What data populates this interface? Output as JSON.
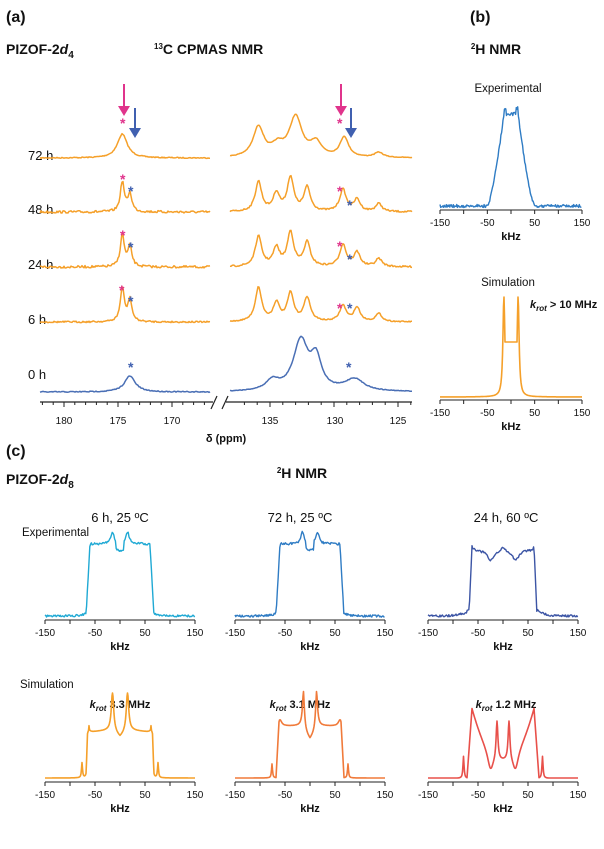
{
  "panel_a": {
    "label": "(a)",
    "sample": "PIZOF-2",
    "sample_sub": "d",
    "sample_subsub": "4",
    "technique_sup": "13",
    "technique": "C CPMAS NMR",
    "xlabel": "δ (ppm)",
    "left_ticks": [
      "180",
      "175",
      "170"
    ],
    "right_ticks": [
      "135",
      "130",
      "125"
    ],
    "traces": [
      {
        "label": "72 h"
      },
      {
        "label": "48 h"
      },
      {
        "label": "24 h"
      },
      {
        "label": "6 h"
      },
      {
        "label": "0 h"
      }
    ],
    "star": "*"
  },
  "panel_b": {
    "label": "(b)",
    "technique_sup": "2",
    "technique": "H NMR",
    "experimental": "Experimental",
    "simulation": "Simulation",
    "k_main": "k",
    "k_sub": "rot",
    "k_value": " > 10 MHz",
    "ticks": [
      "-150",
      "-50",
      "50",
      "150"
    ],
    "xlabel": "kHz"
  },
  "panel_c": {
    "label": "(c)",
    "sample": "PIZOF-2",
    "sample_sub": "d",
    "sample_subsub": "8",
    "technique_sup": "2",
    "technique": "H NMR",
    "experimental": "Experimental",
    "simulation": "Simulation",
    "ticks": [
      "-150",
      "-50",
      "50",
      "150"
    ],
    "xlabel": "kHz",
    "columns": [
      {
        "title": "6 h, 25 ºC",
        "k_main": "k",
        "k_sub": "rot",
        "k_value": " 3.3 MHz"
      },
      {
        "title": "72 h, 25 ºC",
        "k_main": "k",
        "k_sub": "rot",
        "k_value": " 3.1 MHz"
      },
      {
        "title": "24 h, 60 ºC",
        "k_main": "k",
        "k_sub": "rot",
        "k_value": " 1.2 MHz"
      }
    ]
  },
  "colors": {
    "orange": "#f5a02a",
    "blue0h": "#4a6fb5",
    "exp_b": "#2f7cc4",
    "exp_c1": "#1fa9d4",
    "exp_c2": "#2f7cc4",
    "exp_c3": "#3c55a5",
    "sim_c2": "#f07a3a",
    "sim_c3": "#e8504a",
    "magenta": "#e0348c",
    "navy": "#4060b0"
  },
  "chart_data": [
    {
      "type": "line",
      "panel": "a",
      "x_unit": "ppm",
      "xlim_left": [
        183,
        163
      ],
      "xlim_right": [
        137,
        122
      ],
      "series": [
        {
          "name": "72 h",
          "peaks_ppm": [
            174.6,
            135.9,
            134.4,
            133.0,
            131.4,
            129.2,
            126.5
          ]
        },
        {
          "name": "48 h",
          "peaks_ppm": [
            174.6,
            173.9,
            135.9,
            134.5,
            133.4,
            132.1,
            129.3,
            128.2,
            126.5
          ]
        },
        {
          "name": "24 h",
          "peaks_ppm": [
            174.6,
            173.9,
            135.9,
            134.5,
            133.4,
            132.1,
            129.3,
            128.2,
            126.5
          ]
        },
        {
          "name": "6 h",
          "peaks_ppm": [
            174.6,
            173.9,
            135.9,
            134.5,
            133.4,
            132.1,
            129.3,
            128.2,
            126.5
          ]
        },
        {
          "name": "0 h",
          "peaks_ppm": [
            173.9,
            134.8,
            132.6,
            131.4,
            128.4
          ]
        }
      ]
    },
    {
      "type": "line",
      "panel": "b",
      "x_unit": "kHz",
      "xlim": [
        -150,
        150
      ],
      "series": [
        {
          "name": "Experimental",
          "plateau_kHz": [
            -15,
            15
          ],
          "width_kHz": 60
        },
        {
          "name": "Simulation",
          "horn_kHz": [
            -15,
            15
          ],
          "width_kHz": 30
        }
      ]
    },
    {
      "type": "line",
      "panel": "c",
      "x_unit": "kHz",
      "xlim": [
        -150,
        150
      ],
      "series": [
        {
          "name": "6 h, 25 ºC",
          "horn_kHz": [
            -15,
            15
          ],
          "edge_kHz": [
            -65,
            65
          ]
        },
        {
          "name": "72 h, 25 ºC",
          "horn_kHz": [
            -13,
            13
          ],
          "edge_kHz": [
            -65,
            65
          ]
        },
        {
          "name": "24 h, 60 ºC",
          "horn_kHz": [
            -65,
            65
          ],
          "edge_kHz": [
            -72,
            72
          ]
        }
      ]
    }
  ]
}
